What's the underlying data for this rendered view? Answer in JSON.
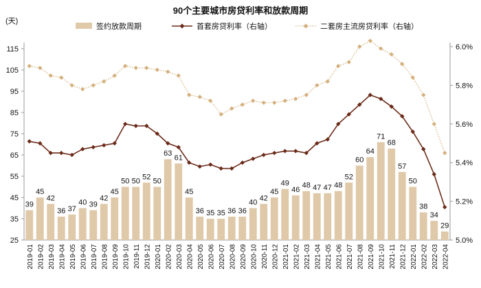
{
  "chart_data": {
    "type": "bar+line",
    "title": "90个主要城市房贷利率和放款周期",
    "left_unit": "(天)",
    "categories": [
      "2019-01",
      "2019-02",
      "2019-03",
      "2019-04",
      "2019-05",
      "2019-06",
      "2019-07",
      "2019-08",
      "2019-09",
      "2019-10",
      "2019-11",
      "2019-12",
      "2020-01",
      "2020-02",
      "2020-03",
      "2020-04",
      "2020-05",
      "2020-06",
      "2020-07",
      "2020-08",
      "2020-09",
      "2020-10",
      "2020-11",
      "2020-12",
      "2021-01",
      "2021-02",
      "2021-03",
      "2021-04",
      "2021-05",
      "2021-06",
      "2021-07",
      "2021-08",
      "2021-09",
      "2021-10",
      "2021-11",
      "2021-12",
      "2022-01",
      "2022-02",
      "2022-03",
      "2022-04"
    ],
    "series": [
      {
        "name": "签约放款周期",
        "type": "bar",
        "axis": "left",
        "color": "#dfc9a8",
        "values": [
          39,
          45,
          42,
          36,
          37,
          40,
          39,
          42,
          45,
          50,
          50,
          52,
          50,
          63,
          61,
          45,
          36,
          35,
          35,
          36,
          36,
          40,
          42,
          45,
          49,
          46,
          48,
          47,
          47,
          48,
          52,
          60,
          64,
          71,
          68,
          57,
          50,
          38,
          34,
          29
        ]
      },
      {
        "name": "首套房贷利率（右轴）",
        "type": "line",
        "axis": "right",
        "color": "#6b2a18",
        "values": [
          5.51,
          5.5,
          5.45,
          5.45,
          5.44,
          5.47,
          5.48,
          5.49,
          5.5,
          5.6,
          5.59,
          5.59,
          5.55,
          5.5,
          5.48,
          5.4,
          5.38,
          5.39,
          5.37,
          5.37,
          5.4,
          5.42,
          5.44,
          5.45,
          5.46,
          5.46,
          5.45,
          5.5,
          5.52,
          5.6,
          5.65,
          5.7,
          5.75,
          5.73,
          5.69,
          5.64,
          5.56,
          5.47,
          5.34,
          5.17
        ]
      },
      {
        "name": "二套房主流房贷利率（右轴）",
        "type": "line-dotted",
        "axis": "right",
        "color": "#d4b07c",
        "values": [
          5.9,
          5.89,
          5.85,
          5.84,
          5.8,
          5.78,
          5.8,
          5.82,
          5.85,
          5.9,
          5.89,
          5.89,
          5.88,
          5.87,
          5.85,
          5.75,
          5.74,
          5.72,
          5.65,
          5.68,
          5.7,
          5.72,
          5.71,
          5.71,
          5.72,
          5.73,
          5.75,
          5.8,
          5.82,
          5.9,
          5.92,
          6.0,
          6.03,
          5.99,
          5.96,
          5.91,
          5.84,
          5.75,
          5.6,
          5.45
        ]
      }
    ],
    "left_axis": {
      "ticks": [
        25,
        35,
        45,
        55,
        65,
        75,
        85,
        95,
        105,
        115
      ]
    },
    "right_axis": {
      "ticks": [
        "5.0%",
        "5.2%",
        "5.4%",
        "5.6%",
        "5.8%",
        "6.0%"
      ],
      "values": [
        5.0,
        5.2,
        5.4,
        5.6,
        5.8,
        6.0
      ]
    },
    "legend_placement": "top",
    "grid": false
  }
}
